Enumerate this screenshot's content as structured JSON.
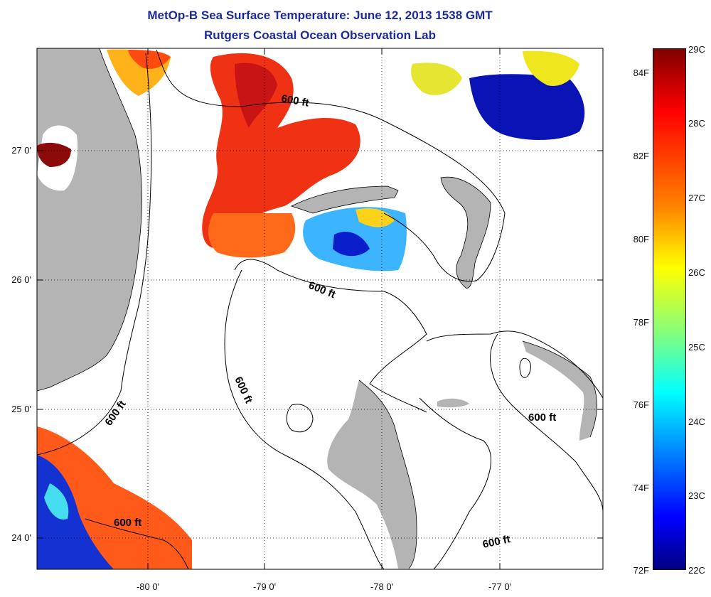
{
  "title": "MetOp-B Sea Surface Temperature:  June 12, 2013 1538 GMT",
  "subtitle": "Rutgers Coastal Ocean Observation Lab",
  "axes": {
    "x_ticks": [
      "-80 0'",
      "-79 0'",
      "-78 0'",
      "-77 0'"
    ],
    "y_ticks": [
      "27 0'",
      "26 0'",
      "25 0'",
      "24 0'"
    ]
  },
  "contour_labels": [
    "600 ft",
    "600 ft",
    "600 ft",
    "600 ft",
    "600 ft",
    "600 ft"
  ],
  "colorbar": {
    "celsius": [
      "29C",
      "28C",
      "27C",
      "26C",
      "25C",
      "24C",
      "23C",
      "22C"
    ],
    "fahrenheit": [
      "84F",
      "82F",
      "80F",
      "78F",
      "76F",
      "74F",
      "72F"
    ],
    "stops": [
      "#800000",
      "#ff0000",
      "#ff8000",
      "#ffff00",
      "#80ff80",
      "#00ffff",
      "#0080ff",
      "#0000ff",
      "#000080"
    ]
  },
  "colors": {
    "land": "#b4b4b4",
    "title": "#1c2a9c",
    "grid": "#000000"
  }
}
